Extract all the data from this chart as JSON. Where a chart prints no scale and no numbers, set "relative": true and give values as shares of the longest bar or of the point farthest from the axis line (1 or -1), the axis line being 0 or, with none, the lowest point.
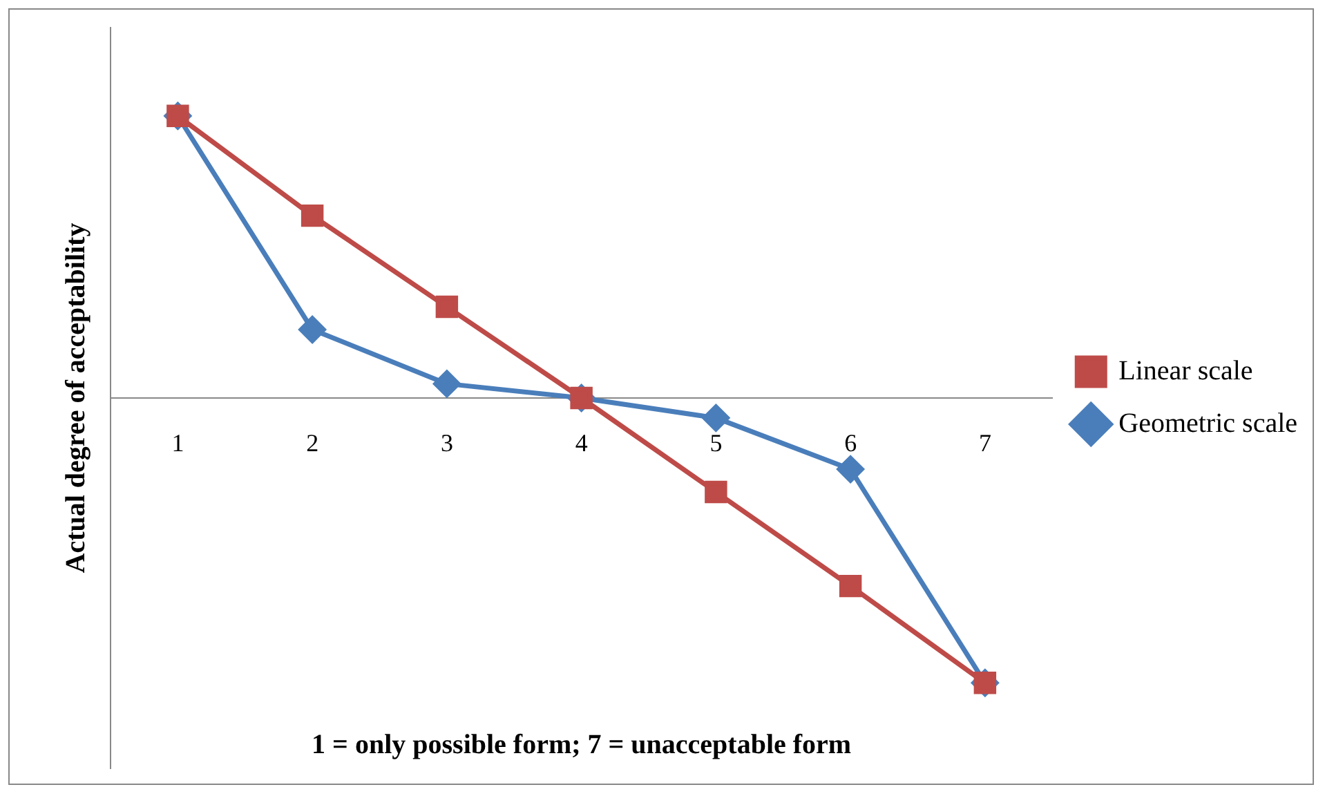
{
  "chart_data": {
    "type": "line",
    "relative": true,
    "xlabel": "1 = only possible form; 7 = unacceptable form",
    "ylabel": "Actual degree of acceptability",
    "categories": [
      "1",
      "2",
      "3",
      "4",
      "5",
      "6",
      "7"
    ],
    "series": [
      {
        "name": "Geometric scale",
        "color": "#4a7ebb",
        "marker": "diamond",
        "values": [
          0.99,
          0.24,
          0.05,
          0,
          -0.07,
          -0.25,
          -1
        ]
      },
      {
        "name": "Linear scale",
        "color": "#be4b48",
        "marker": "square",
        "values": [
          0.99,
          0.64,
          0.32,
          0,
          -0.33,
          -0.66,
          -1
        ]
      }
    ],
    "legend": "right",
    "grid": false,
    "line_style": "solid"
  }
}
